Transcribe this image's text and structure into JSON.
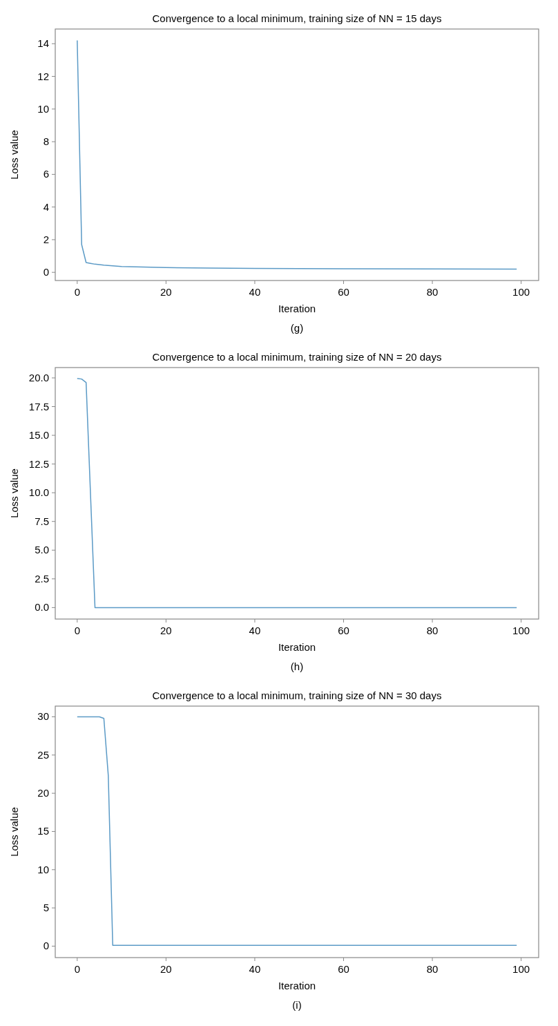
{
  "chart_data": [
    {
      "type": "line",
      "title": "Convergence to a local minimum, training size of NN = 15 days",
      "xlabel": "Iteration",
      "ylabel": "Loss value",
      "annotations": [
        "(g)"
      ],
      "grid": false,
      "xlim": [
        -4.95,
        103.95
      ],
      "ylim": [
        -0.5,
        14.9
      ],
      "xticks": [
        0,
        20,
        40,
        60,
        80,
        100
      ],
      "yticks": [
        0,
        2,
        4,
        6,
        8,
        10,
        12,
        14
      ],
      "series": [
        {
          "color": "#5b9ac6",
          "x": [
            0,
            1,
            2,
            3,
            4,
            5,
            6,
            8,
            10,
            15,
            20,
            30,
            40,
            60,
            80,
            99
          ],
          "values": [
            14.2,
            1.7,
            0.6,
            0.55,
            0.5,
            0.47,
            0.44,
            0.4,
            0.36,
            0.32,
            0.29,
            0.26,
            0.24,
            0.22,
            0.21,
            0.2
          ]
        }
      ]
    },
    {
      "type": "line",
      "title": "Convergence to a local minimum, training size of NN = 20 days",
      "xlabel": "Iteration",
      "ylabel": "Loss value",
      "annotations": [
        "(h)"
      ],
      "grid": false,
      "xlim": [
        -4.95,
        103.95
      ],
      "ylim": [
        -1.0,
        20.9
      ],
      "xticks": [
        0,
        20,
        40,
        60,
        80,
        100
      ],
      "yticks": [
        {
          "value": 0,
          "label": "0.0"
        },
        {
          "value": 2.5,
          "label": "2.5"
        },
        {
          "value": 5,
          "label": "5.0"
        },
        {
          "value": 7.5,
          "label": "7.5"
        },
        {
          "value": 10,
          "label": "10.0"
        },
        {
          "value": 12.5,
          "label": "12.5"
        },
        {
          "value": 15,
          "label": "15.0"
        },
        {
          "value": 17.5,
          "label": "17.5"
        },
        {
          "value": 20,
          "label": "20.0"
        }
      ],
      "series": [
        {
          "color": "#5b9ac6",
          "x": [
            0,
            1,
            2,
            4,
            99
          ],
          "values": [
            19.95,
            19.9,
            19.6,
            0,
            0
          ]
        }
      ]
    },
    {
      "type": "line",
      "title": "Convergence to a local minimum, training size of NN = 30 days",
      "xlabel": "Iteration",
      "ylabel": "Loss value",
      "annotations": [
        "(i)"
      ],
      "grid": false,
      "xlim": [
        -4.95,
        103.95
      ],
      "ylim": [
        -1.5,
        31.4
      ],
      "xticks": [
        0,
        20,
        40,
        60,
        80,
        100
      ],
      "yticks": [
        0,
        5,
        10,
        15,
        20,
        25,
        30
      ],
      "series": [
        {
          "color": "#5b9ac6",
          "x": [
            0,
            5,
            6,
            7,
            8,
            99
          ],
          "values": [
            30,
            30,
            29.8,
            22.3,
            0.1,
            0.1
          ]
        }
      ]
    }
  ]
}
